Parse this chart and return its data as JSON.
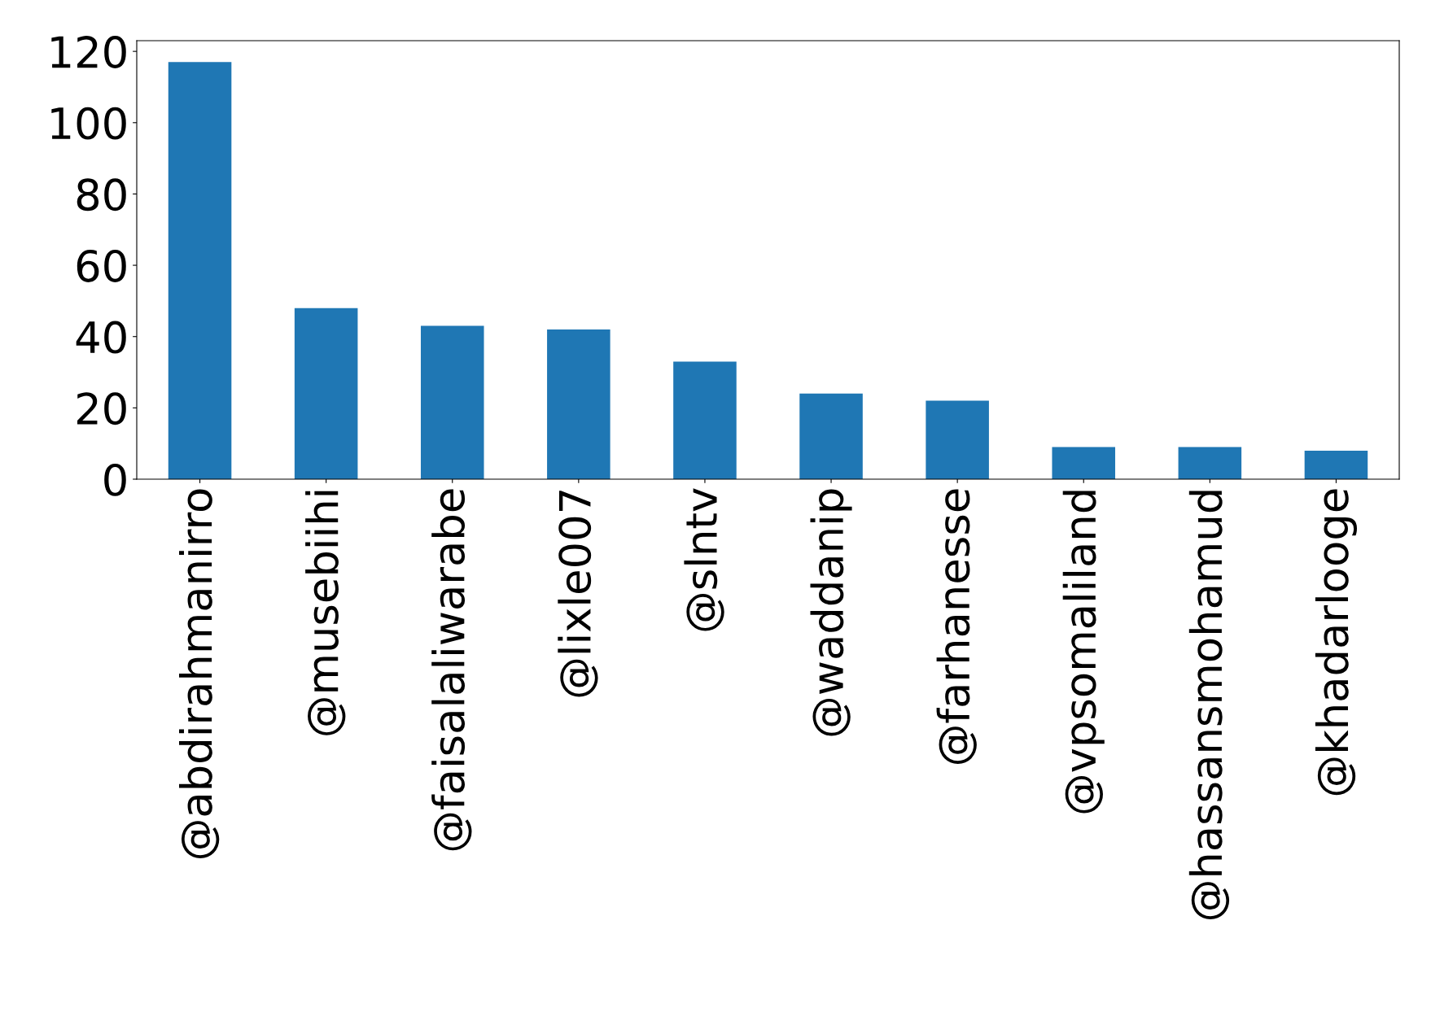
{
  "chart_data": {
    "type": "bar",
    "categories": [
      "@abdirahmanirro",
      "@musebiihi",
      "@faisalaliwarabe",
      "@lixle007",
      "@slntv",
      "@waddanip",
      "@farhanesse",
      "@vpsomaliland",
      "@hassansmohamud",
      "@khadarlooge"
    ],
    "values": [
      117,
      48,
      43,
      42,
      33,
      24,
      22,
      9,
      9,
      8
    ],
    "color": "#1f77b4",
    "ylim": [
      0,
      123
    ],
    "yticks": [
      0,
      20,
      40,
      60,
      80,
      100,
      120
    ],
    "grid": false,
    "legend": false
  }
}
